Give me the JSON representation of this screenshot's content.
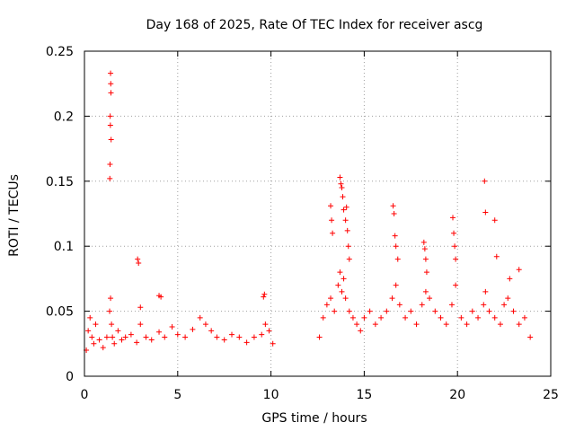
{
  "chart_data": {
    "type": "scatter",
    "title": "Day 168 of 2025, Rate Of TEC Index for receiver ascg",
    "xlabel": "GPS time / hours",
    "ylabel": "ROTI / TECUs",
    "xlim": [
      0,
      25
    ],
    "ylim": [
      0,
      0.25
    ],
    "xticks": [
      0,
      5,
      10,
      15,
      20,
      25
    ],
    "xtick_labels": [
      "0",
      "5",
      "10",
      "15",
      "20",
      "25"
    ],
    "yticks": [
      0,
      0.05,
      0.1,
      0.15,
      0.2,
      0.25
    ],
    "ytick_labels": [
      "0",
      "0.05",
      "0.1",
      "0.15",
      "0.2",
      "0.25"
    ],
    "grid": true,
    "marker": "+",
    "marker_color": "#ff0000",
    "data_gap_hours": [
      10.3,
      12.5
    ],
    "series": [
      {
        "name": "ROTI",
        "x": [
          0.1,
          0.2,
          0.3,
          0.4,
          0.5,
          0.6,
          0.8,
          1.0,
          1.2,
          1.35,
          1.4,
          1.45,
          1.5,
          1.6,
          1.8,
          2.0,
          2.2,
          2.5,
          2.8,
          3.0,
          3.3,
          3.6,
          4.0,
          4.3,
          4.7,
          5.0,
          5.4,
          5.8,
          6.2,
          6.5,
          6.8,
          7.1,
          7.5,
          7.9,
          8.3,
          8.7,
          9.1,
          9.5,
          9.7,
          9.9,
          10.1,
          12.6,
          12.8,
          13.0,
          13.2,
          13.4,
          13.6,
          13.7,
          13.8,
          13.9,
          14.0,
          14.2,
          14.4,
          14.6,
          14.8,
          15.0,
          15.3,
          15.6,
          15.9,
          16.2,
          16.5,
          16.7,
          16.9,
          17.2,
          17.5,
          17.8,
          18.1,
          18.3,
          18.5,
          18.8,
          19.1,
          19.4,
          19.7,
          19.9,
          20.2,
          20.5,
          20.8,
          21.1,
          21.4,
          21.5,
          21.7,
          22.0,
          22.3,
          22.5,
          22.7,
          23.0,
          23.3,
          23.6,
          23.9,
          1.4,
          1.41,
          1.42,
          1.38,
          1.39,
          1.43,
          1.37,
          1.36,
          2.85,
          2.9,
          3.0,
          4.0,
          4.1,
          9.6,
          9.65,
          13.2,
          13.25,
          13.3,
          13.7,
          13.75,
          13.8,
          13.85,
          13.9,
          14.0,
          14.05,
          14.1,
          14.15,
          14.2,
          16.55,
          16.6,
          16.65,
          16.7,
          16.8,
          18.2,
          18.25,
          18.3,
          18.35,
          19.75,
          19.8,
          19.85,
          19.9,
          21.45,
          21.5,
          22.0,
          22.1,
          22.8,
          23.3
        ],
        "y": [
          0.02,
          0.035,
          0.045,
          0.03,
          0.025,
          0.04,
          0.028,
          0.022,
          0.03,
          0.05,
          0.06,
          0.04,
          0.03,
          0.025,
          0.035,
          0.028,
          0.03,
          0.032,
          0.026,
          0.04,
          0.03,
          0.028,
          0.034,
          0.03,
          0.038,
          0.032,
          0.03,
          0.036,
          0.045,
          0.04,
          0.035,
          0.03,
          0.028,
          0.032,
          0.03,
          0.026,
          0.03,
          0.032,
          0.04,
          0.035,
          0.025,
          0.03,
          0.045,
          0.055,
          0.06,
          0.05,
          0.07,
          0.08,
          0.065,
          0.075,
          0.06,
          0.05,
          0.045,
          0.04,
          0.035,
          0.045,
          0.05,
          0.04,
          0.045,
          0.05,
          0.06,
          0.07,
          0.055,
          0.045,
          0.05,
          0.04,
          0.055,
          0.065,
          0.06,
          0.05,
          0.045,
          0.04,
          0.055,
          0.07,
          0.045,
          0.04,
          0.05,
          0.045,
          0.055,
          0.065,
          0.05,
          0.045,
          0.04,
          0.055,
          0.06,
          0.05,
          0.04,
          0.045,
          0.03,
          0.233,
          0.225,
          0.218,
          0.2,
          0.193,
          0.182,
          0.163,
          0.152,
          0.09,
          0.087,
          0.053,
          0.062,
          0.061,
          0.061,
          0.063,
          0.131,
          0.12,
          0.11,
          0.153,
          0.148,
          0.145,
          0.138,
          0.128,
          0.12,
          0.13,
          0.112,
          0.1,
          0.09,
          0.131,
          0.125,
          0.108,
          0.1,
          0.09,
          0.103,
          0.098,
          0.09,
          0.08,
          0.122,
          0.11,
          0.1,
          0.09,
          0.15,
          0.126,
          0.12,
          0.092,
          0.075,
          0.082
        ]
      }
    ]
  }
}
